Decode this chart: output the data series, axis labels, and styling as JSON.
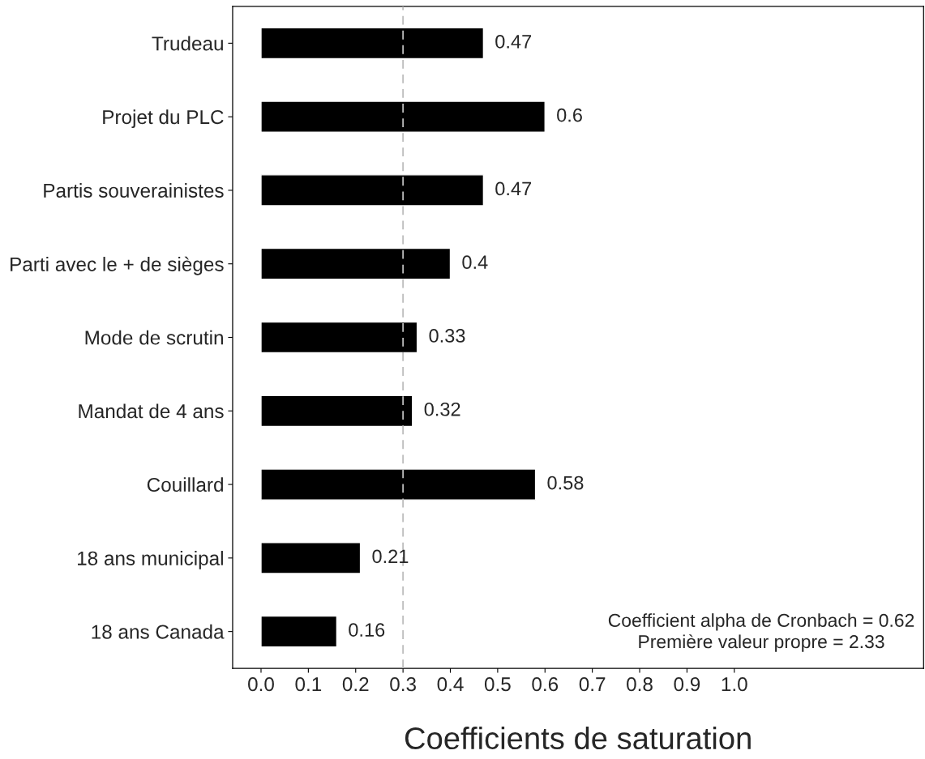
{
  "chart_data": {
    "type": "bar",
    "orientation": "horizontal",
    "xlabel": "Coefficients de saturation",
    "categories": [
      "Trudeau",
      "Projet du PLC",
      "Partis souverainistes",
      "Parti avec le + de sièges",
      "Mode de scrutin",
      "Mandat de 4 ans",
      "Couillard",
      "18 ans municipal",
      "18 ans Canada"
    ],
    "values": [
      0.47,
      0.6,
      0.47,
      0.4,
      0.33,
      0.32,
      0.58,
      0.21,
      0.16
    ],
    "color": "#000000",
    "data_labels": true,
    "xlim": [
      -0.06,
      1.4
    ],
    "xticks": [
      {
        "value": 0,
        "label": "0.0"
      },
      0.1,
      0.2,
      0.3,
      0.4,
      0.5,
      0.6,
      0.7,
      0.8,
      0.9,
      {
        "value": 1,
        "label": "1.0"
      }
    ],
    "ref_lines": [
      {
        "axis": "x",
        "value": 0.3,
        "color": "#bdbdbd",
        "line_style": "dashed"
      }
    ],
    "annotations": [
      "Coefficient alpha de Cronbach = 0.62",
      "Première valeur propre = 2.33"
    ],
    "grid": false
  }
}
